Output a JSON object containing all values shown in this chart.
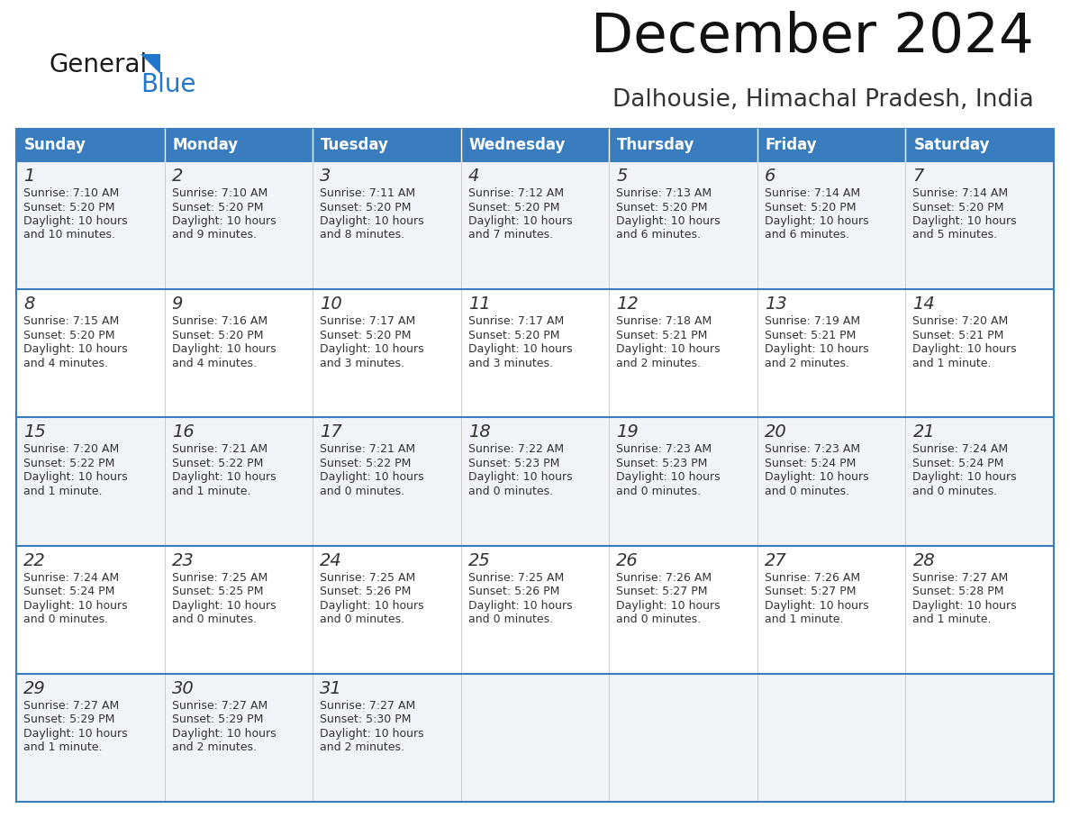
{
  "title": "December 2024",
  "subtitle": "Dalhousie, Himachal Pradesh, India",
  "days_of_week": [
    "Sunday",
    "Monday",
    "Tuesday",
    "Wednesday",
    "Thursday",
    "Friday",
    "Saturday"
  ],
  "header_bg": "#3a7dbf",
  "header_text": "#ffffff",
  "row_bg_odd": "#f0f4f8",
  "row_bg_even": "#ffffff",
  "cell_border_color": "#3a7dbf",
  "gray_line_color": "#cccccc",
  "day_number_color": "#333333",
  "cell_text_color": "#333333",
  "logo_general_color": "#1a1a1a",
  "logo_blue_color": "#2277cc",
  "logo_triangle_color": "#2277cc",
  "calendar_data": [
    [
      {
        "day": 1,
        "sunrise": "7:10 AM",
        "sunset": "5:20 PM",
        "daylight_h": "10 hours",
        "daylight_m": "and 10 minutes."
      },
      {
        "day": 2,
        "sunrise": "7:10 AM",
        "sunset": "5:20 PM",
        "daylight_h": "10 hours",
        "daylight_m": "and 9 minutes."
      },
      {
        "day": 3,
        "sunrise": "7:11 AM",
        "sunset": "5:20 PM",
        "daylight_h": "10 hours",
        "daylight_m": "and 8 minutes."
      },
      {
        "day": 4,
        "sunrise": "7:12 AM",
        "sunset": "5:20 PM",
        "daylight_h": "10 hours",
        "daylight_m": "and 7 minutes."
      },
      {
        "day": 5,
        "sunrise": "7:13 AM",
        "sunset": "5:20 PM",
        "daylight_h": "10 hours",
        "daylight_m": "and 6 minutes."
      },
      {
        "day": 6,
        "sunrise": "7:14 AM",
        "sunset": "5:20 PM",
        "daylight_h": "10 hours",
        "daylight_m": "and 6 minutes."
      },
      {
        "day": 7,
        "sunrise": "7:14 AM",
        "sunset": "5:20 PM",
        "daylight_h": "10 hours",
        "daylight_m": "and 5 minutes."
      }
    ],
    [
      {
        "day": 8,
        "sunrise": "7:15 AM",
        "sunset": "5:20 PM",
        "daylight_h": "10 hours",
        "daylight_m": "and 4 minutes."
      },
      {
        "day": 9,
        "sunrise": "7:16 AM",
        "sunset": "5:20 PM",
        "daylight_h": "10 hours",
        "daylight_m": "and 4 minutes."
      },
      {
        "day": 10,
        "sunrise": "7:17 AM",
        "sunset": "5:20 PM",
        "daylight_h": "10 hours",
        "daylight_m": "and 3 minutes."
      },
      {
        "day": 11,
        "sunrise": "7:17 AM",
        "sunset": "5:20 PM",
        "daylight_h": "10 hours",
        "daylight_m": "and 3 minutes."
      },
      {
        "day": 12,
        "sunrise": "7:18 AM",
        "sunset": "5:21 PM",
        "daylight_h": "10 hours",
        "daylight_m": "and 2 minutes."
      },
      {
        "day": 13,
        "sunrise": "7:19 AM",
        "sunset": "5:21 PM",
        "daylight_h": "10 hours",
        "daylight_m": "and 2 minutes."
      },
      {
        "day": 14,
        "sunrise": "7:20 AM",
        "sunset": "5:21 PM",
        "daylight_h": "10 hours",
        "daylight_m": "and 1 minute."
      }
    ],
    [
      {
        "day": 15,
        "sunrise": "7:20 AM",
        "sunset": "5:22 PM",
        "daylight_h": "10 hours",
        "daylight_m": "and 1 minute."
      },
      {
        "day": 16,
        "sunrise": "7:21 AM",
        "sunset": "5:22 PM",
        "daylight_h": "10 hours",
        "daylight_m": "and 1 minute."
      },
      {
        "day": 17,
        "sunrise": "7:21 AM",
        "sunset": "5:22 PM",
        "daylight_h": "10 hours",
        "daylight_m": "and 0 minutes."
      },
      {
        "day": 18,
        "sunrise": "7:22 AM",
        "sunset": "5:23 PM",
        "daylight_h": "10 hours",
        "daylight_m": "and 0 minutes."
      },
      {
        "day": 19,
        "sunrise": "7:23 AM",
        "sunset": "5:23 PM",
        "daylight_h": "10 hours",
        "daylight_m": "and 0 minutes."
      },
      {
        "day": 20,
        "sunrise": "7:23 AM",
        "sunset": "5:24 PM",
        "daylight_h": "10 hours",
        "daylight_m": "and 0 minutes."
      },
      {
        "day": 21,
        "sunrise": "7:24 AM",
        "sunset": "5:24 PM",
        "daylight_h": "10 hours",
        "daylight_m": "and 0 minutes."
      }
    ],
    [
      {
        "day": 22,
        "sunrise": "7:24 AM",
        "sunset": "5:24 PM",
        "daylight_h": "10 hours",
        "daylight_m": "and 0 minutes."
      },
      {
        "day": 23,
        "sunrise": "7:25 AM",
        "sunset": "5:25 PM",
        "daylight_h": "10 hours",
        "daylight_m": "and 0 minutes."
      },
      {
        "day": 24,
        "sunrise": "7:25 AM",
        "sunset": "5:26 PM",
        "daylight_h": "10 hours",
        "daylight_m": "and 0 minutes."
      },
      {
        "day": 25,
        "sunrise": "7:25 AM",
        "sunset": "5:26 PM",
        "daylight_h": "10 hours",
        "daylight_m": "and 0 minutes."
      },
      {
        "day": 26,
        "sunrise": "7:26 AM",
        "sunset": "5:27 PM",
        "daylight_h": "10 hours",
        "daylight_m": "and 0 minutes."
      },
      {
        "day": 27,
        "sunrise": "7:26 AM",
        "sunset": "5:27 PM",
        "daylight_h": "10 hours",
        "daylight_m": "and 1 minute."
      },
      {
        "day": 28,
        "sunrise": "7:27 AM",
        "sunset": "5:28 PM",
        "daylight_h": "10 hours",
        "daylight_m": "and 1 minute."
      }
    ],
    [
      {
        "day": 29,
        "sunrise": "7:27 AM",
        "sunset": "5:29 PM",
        "daylight_h": "10 hours",
        "daylight_m": "and 1 minute."
      },
      {
        "day": 30,
        "sunrise": "7:27 AM",
        "sunset": "5:29 PM",
        "daylight_h": "10 hours",
        "daylight_m": "and 2 minutes."
      },
      {
        "day": 31,
        "sunrise": "7:27 AM",
        "sunset": "5:30 PM",
        "daylight_h": "10 hours",
        "daylight_m": "and 2 minutes."
      },
      null,
      null,
      null,
      null
    ]
  ]
}
